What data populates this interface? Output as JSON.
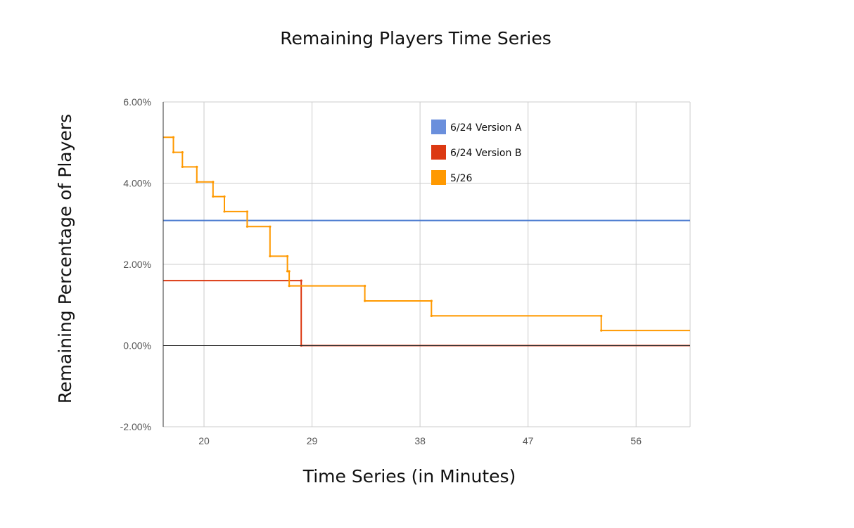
{
  "chart_data": {
    "type": "line",
    "title": "Remaining Players Time Series",
    "xlabel": "Time Series (in Minutes)",
    "ylabel": "Remaining Percentage of Players",
    "xlim": [
      16.6,
      60.5
    ],
    "ylim": [
      -2,
      6
    ],
    "x_ticks": [
      20,
      29,
      38,
      47,
      56
    ],
    "x_tick_labels": [
      "20",
      "29",
      "38",
      "47",
      "56"
    ],
    "y_ticks": [
      -2,
      0,
      2,
      4,
      6
    ],
    "y_tick_labels": [
      "-2.00%",
      "0.00%",
      "2.00%",
      "4.00%",
      "6.00%"
    ],
    "grid": true,
    "legend_position": "top-right-inside",
    "step": true,
    "series": [
      {
        "name": "6/24 Version A",
        "color": "#4a7bd0",
        "legend_color": "#6a8fdc",
        "points": [
          [
            16.6,
            3.08
          ],
          [
            60.5,
            3.08
          ]
        ]
      },
      {
        "name": "6/24 Version B",
        "color": "#dc3912",
        "legend_color": "#dc3912",
        "points": [
          [
            16.6,
            1.6
          ],
          [
            28.1,
            1.6
          ],
          [
            28.1,
            0
          ],
          [
            60.5,
            0
          ]
        ]
      },
      {
        "name": "5/26",
        "color": "#ff9900",
        "legend_color": "#ff9900",
        "points": [
          [
            16.6,
            5.13
          ],
          [
            17.45,
            5.13
          ],
          [
            17.45,
            4.76
          ],
          [
            18.2,
            4.76
          ],
          [
            18.2,
            4.4
          ],
          [
            19.4,
            4.4
          ],
          [
            19.4,
            4.03
          ],
          [
            20.75,
            4.03
          ],
          [
            20.75,
            3.67
          ],
          [
            21.7,
            3.67
          ],
          [
            21.7,
            3.3
          ],
          [
            23.6,
            3.3
          ],
          [
            23.6,
            2.93
          ],
          [
            25.5,
            2.93
          ],
          [
            25.5,
            2.2
          ],
          [
            26.95,
            2.2
          ],
          [
            26.95,
            1.83
          ],
          [
            27.1,
            1.83
          ],
          [
            27.1,
            1.47
          ],
          [
            33.4,
            1.47
          ],
          [
            33.4,
            1.1
          ],
          [
            38.95,
            1.1
          ],
          [
            38.95,
            0.73
          ],
          [
            53.1,
            0.73
          ],
          [
            53.1,
            0.37
          ],
          [
            60.5,
            0.37
          ]
        ]
      }
    ]
  }
}
